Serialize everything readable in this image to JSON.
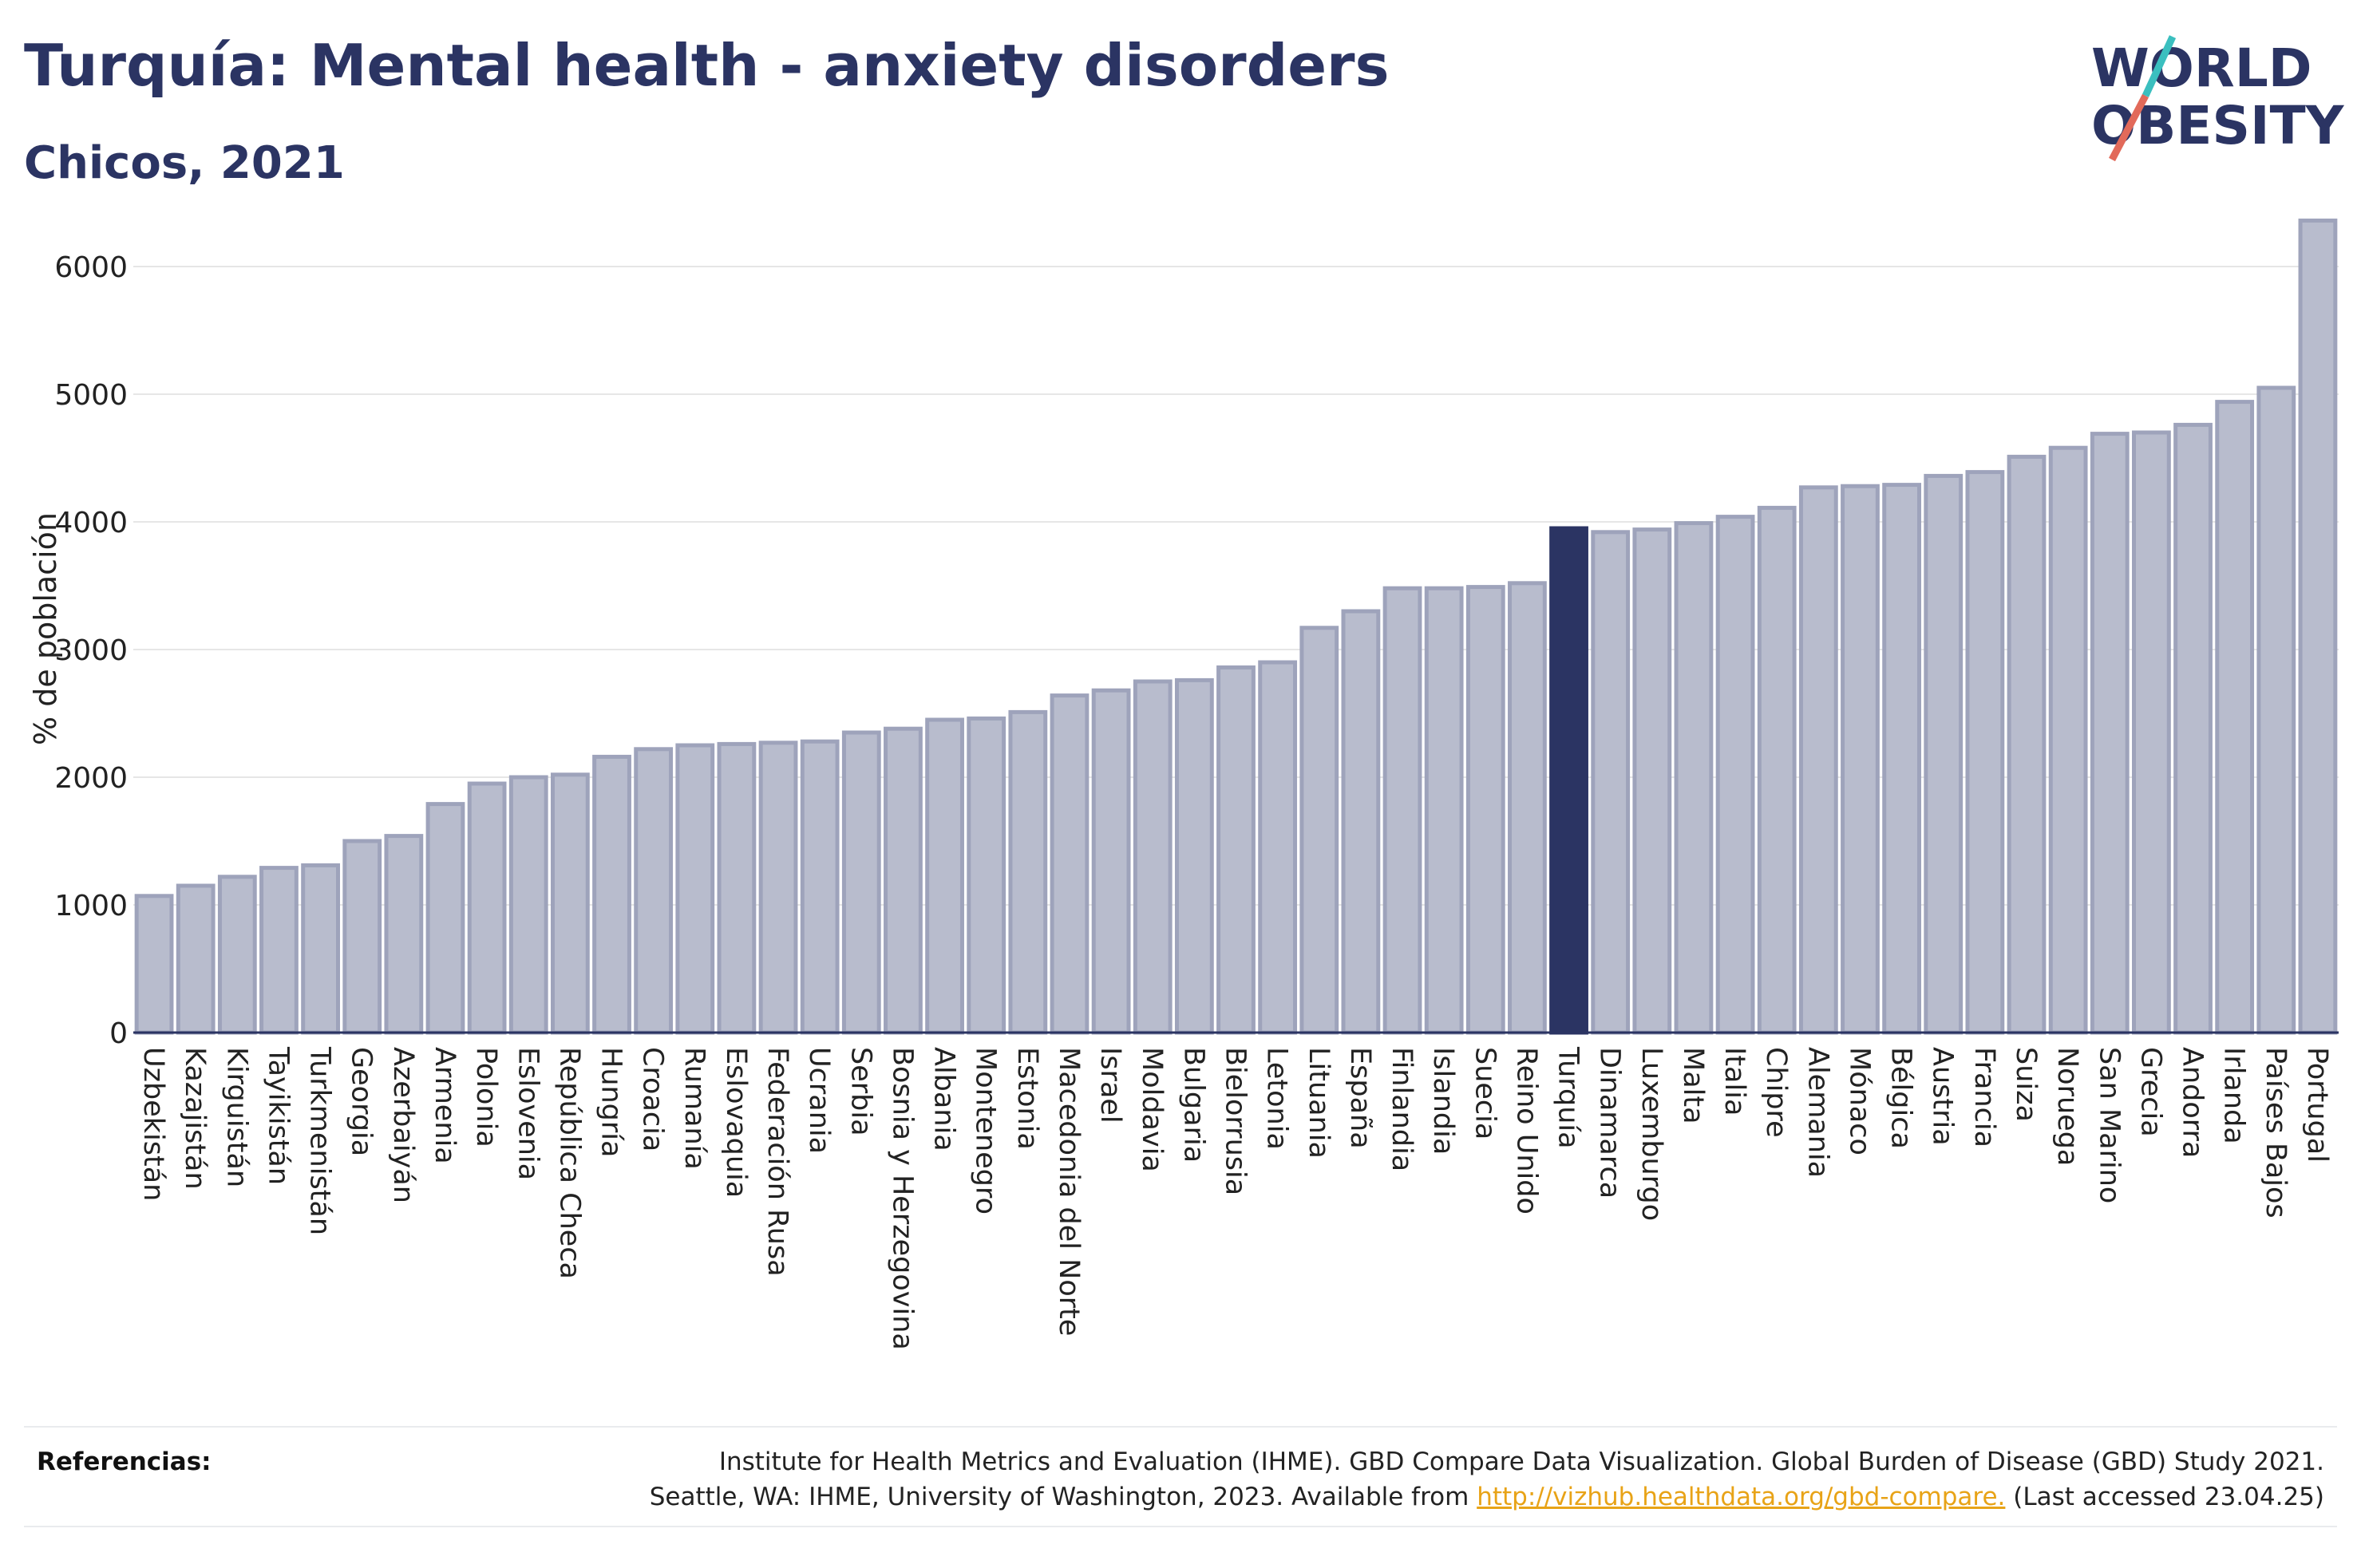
{
  "header": {
    "title": "Turquía: Mental health - anxiety disorders",
    "subtitle": "Chicos, 2021"
  },
  "logo": {
    "line1": "WORLD",
    "line2": "OBESITY"
  },
  "colors": {
    "bar": "#b8bccd",
    "bar_edge": "#9ea3bb",
    "highlight": "#2b3463",
    "text": "#2b3463",
    "grid": "#e6e6e6",
    "link": "#e8a317",
    "logo_teal": "#3bbfbf",
    "logo_red": "#e26a5a"
  },
  "chart_data": {
    "type": "bar",
    "ylabel": "% de población",
    "ylim": [
      0,
      6500
    ],
    "yticks": [
      0,
      1000,
      2000,
      3000,
      4000,
      5000,
      6000
    ],
    "grid": true,
    "highlight": "Turquía",
    "categories": [
      "Uzbekistán",
      "Kazajistán",
      "Kirguistán",
      "Tayikistán",
      "Turkmenistán",
      "Georgia",
      "Azerbaiyán",
      "Armenia",
      "Polonia",
      "Eslovenia",
      "República Checa",
      "Hungría",
      "Croacia",
      "Rumanía",
      "Eslovaquia",
      "Federación Rusa",
      "Ucrania",
      "Serbia",
      "Bosnia y Herzegovina",
      "Albania",
      "Montenegro",
      "Estonia",
      "Macedonia del Norte",
      "Israel",
      "Moldavia",
      "Bulgaria",
      "Bielorrusia",
      "Letonia",
      "Lituania",
      "España",
      "Finlandia",
      "Islandia",
      "Suecia",
      "Reino Unido",
      "Turquía",
      "Dinamarca",
      "Luxemburgo",
      "Malta",
      "Italia",
      "Chipre",
      "Alemania",
      "Mónaco",
      "Bélgica",
      "Austria",
      "Francia",
      "Suiza",
      "Noruega",
      "San Marino",
      "Grecia",
      "Andorra",
      "Irlanda",
      "Países Bajos",
      "Portugal"
    ],
    "values": [
      1070,
      1150,
      1220,
      1290,
      1310,
      1500,
      1540,
      1790,
      1950,
      2000,
      2020,
      2160,
      2220,
      2250,
      2260,
      2270,
      2280,
      2350,
      2380,
      2450,
      2460,
      2510,
      2640,
      2680,
      2750,
      2760,
      2860,
      2900,
      3170,
      3300,
      3480,
      3480,
      3490,
      3520,
      3950,
      3920,
      3940,
      3990,
      4040,
      4110,
      4270,
      4280,
      4290,
      4360,
      4390,
      4510,
      4580,
      4690,
      4700,
      4760,
      4940,
      5050,
      6360
    ]
  },
  "references": {
    "label": "Referencias:",
    "line1": "Institute for Health Metrics and Evaluation (IHME). GBD Compare Data Visualization. Global Burden of Disease (GBD) Study 2021.",
    "line2_pre": "Seattle, WA: IHME, University of Washington, 2023. Available from ",
    "link": "http://vizhub.healthdata.org/gbd-compare.",
    "line2_post": " (Last accessed 23.04.25)"
  }
}
